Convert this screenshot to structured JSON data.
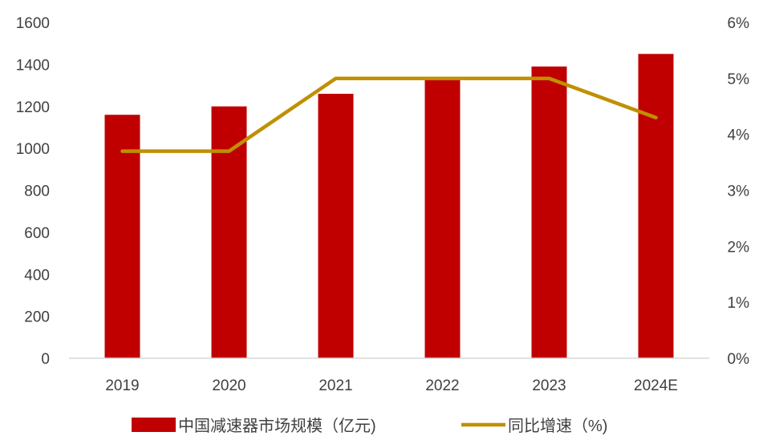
{
  "chart_data": {
    "type": "bar+line",
    "categories": [
      "2019",
      "2020",
      "2021",
      "2022",
      "2023",
      "2024E"
    ],
    "series": [
      {
        "name": "中国减速器市场规模（亿元)",
        "type": "bar",
        "axis": "left",
        "color": "#c00000",
        "values": [
          1160,
          1200,
          1260,
          1325,
          1390,
          1450
        ]
      },
      {
        "name": "同比增速（%)",
        "type": "line",
        "axis": "right",
        "color": "#bf9000",
        "values": [
          3.7,
          3.7,
          5.0,
          5.0,
          5.0,
          4.3
        ]
      }
    ],
    "y_left": {
      "min": 0,
      "max": 1600,
      "ticks": [
        "0",
        "200",
        "400",
        "600",
        "800",
        "1000",
        "1200",
        "1400",
        "1600"
      ]
    },
    "y_right": {
      "min": 0,
      "max": 6,
      "ticks": [
        "0%",
        "1%",
        "2%",
        "3%",
        "4%",
        "5%",
        "6%"
      ]
    },
    "grid": false,
    "legend_position": "bottom"
  }
}
